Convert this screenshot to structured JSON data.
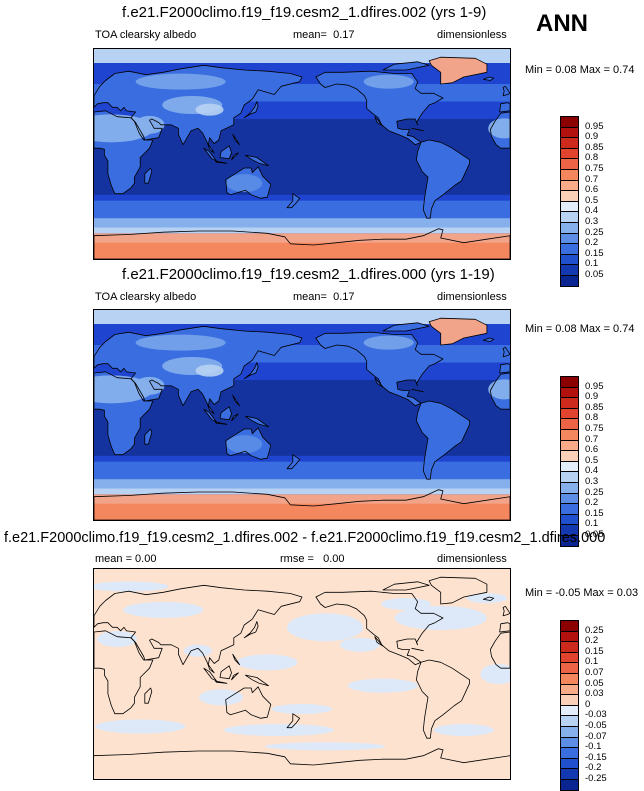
{
  "season": "ANN",
  "panels": [
    {
      "title": "f.e21.F2000climo.f19_f19.cesm2_1.dfires.002 (yrs 1-9)",
      "left_label": "TOA clearsky albedo",
      "stat_label": "mean=",
      "stat_value": "0.17",
      "units": "dimensionless",
      "minmax": "Min =  0.08 Max =  0.74",
      "colorbar_labels": [
        "0.95",
        "0.9",
        "0.85",
        "0.8",
        "0.75",
        "0.7",
        "0.6",
        "0.5",
        "0.4",
        "0.3",
        "0.25",
        "0.2",
        "0.15",
        "0.1",
        "0.05"
      ]
    },
    {
      "title": "f.e21.F2000climo.f19_f19.cesm2_1.dfires.000 (yrs 1-19)",
      "left_label": "TOA clearsky albedo",
      "stat_label": "mean=",
      "stat_value": "0.17",
      "units": "dimensionless",
      "minmax": "Min =  0.08 Max =  0.74",
      "colorbar_labels": [
        "0.95",
        "0.9",
        "0.85",
        "0.8",
        "0.75",
        "0.7",
        "0.6",
        "0.5",
        "0.4",
        "0.3",
        "0.25",
        "0.2",
        "0.15",
        "0.1",
        "0.05"
      ]
    },
    {
      "title": "f.e21.F2000climo.f19_f19.cesm2_1.dfires.002 - f.e21.F2000climo.f19_f19.cesm2_1.dfires.000",
      "left_label": "mean =   0.00",
      "stat_label": "rmse =",
      "stat_value": "0.00",
      "units": "dimensionless",
      "minmax": "Min = -0.05 Max =  0.03",
      "colorbar_labels": [
        "0.25",
        "0.2",
        "0.15",
        "0.1",
        "0.07",
        "0.05",
        "0.03",
        "0",
        "-0.03",
        "-0.05",
        "-0.07",
        "-0.1",
        "-0.15",
        "-0.2",
        "-0.25"
      ]
    }
  ],
  "colors": {
    "scale": [
      "#8b0000",
      "#b2110e",
      "#cc2a1c",
      "#e0442e",
      "#ec6445",
      "#f5875f",
      "#f9aa88",
      "#fbd0b8",
      "#e4eefb",
      "#b8d2f3",
      "#86b0ec",
      "#5c8ee6",
      "#3a6ee0",
      "#2150cf",
      "#1338b0",
      "#0a2490"
    ],
    "ocean_mid": "#1f44cf",
    "ocean_deep": "#15339e",
    "ice": "#f2a48a",
    "diff_pos": "#fde2cf",
    "diff_neg": "#dde9f9"
  }
}
